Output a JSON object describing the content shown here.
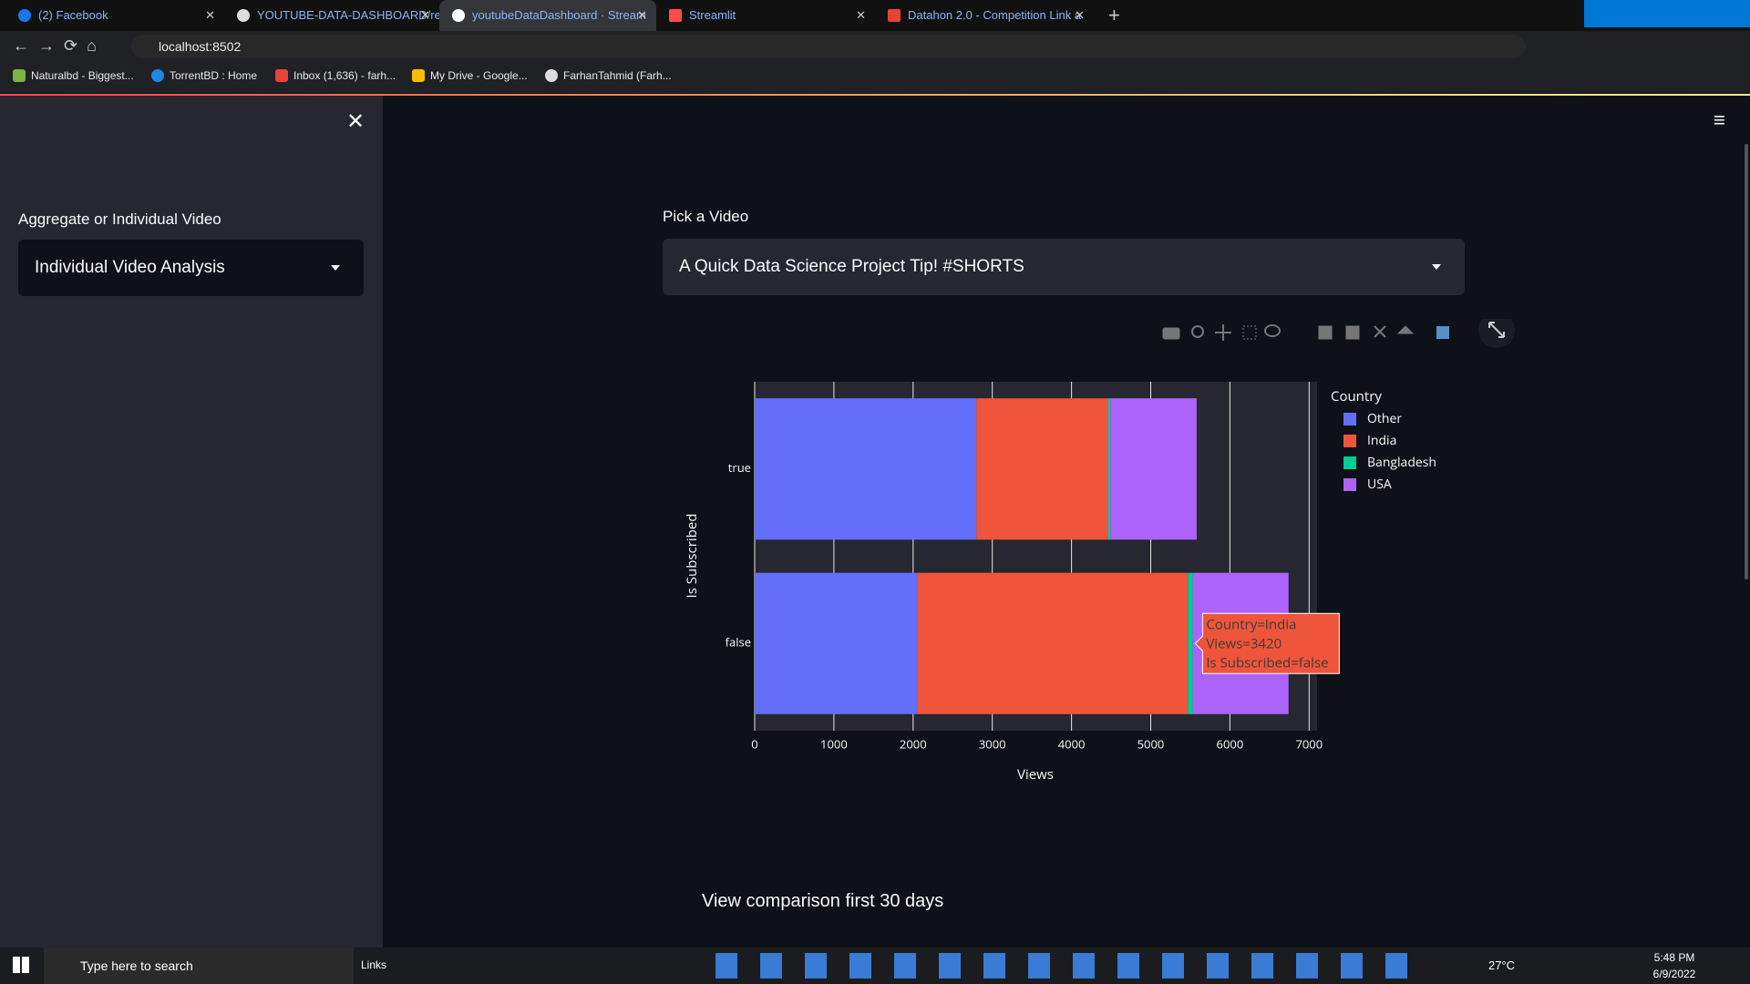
{
  "browser": {
    "tabs": [
      "(2) Facebook",
      "YOUTUBE-DATA-DASHBOARD/re",
      "youtubeDataDashboard · Stream",
      "Streamlit",
      "Datahon 2.0 - Competition Link a"
    ],
    "address": "localhost:8502",
    "bookmarks": [
      "Naturalbd - Biggest...",
      "TorrentBD : Home",
      "Inbox (1,636) - farh...",
      "My Drive - Google...",
      "FarhanTahmid (Farh..."
    ]
  },
  "sidebar": {
    "label": "Aggregate or Individual Video",
    "select": "Individual Video Analysis"
  },
  "main": {
    "label": "Pick a Video",
    "select": "A Quick Data Science Project Tip! #SHORTS",
    "section_title": "View comparison first 30 days"
  },
  "chart_data": {
    "type": "bar",
    "orientation": "horizontal",
    "barmode": "stack",
    "xlabel": "Views",
    "ylabel": "Is Subscribed",
    "legend_title": "Country",
    "categories": [
      "true",
      "false"
    ],
    "series": [
      {
        "name": "Other",
        "color": "#636efa",
        "values": [
          2800,
          2050
        ]
      },
      {
        "name": "India",
        "color": "#ef553b",
        "values": [
          1660,
          3420
        ]
      },
      {
        "name": "Bangladesh",
        "color": "#00cc96",
        "values": [
          30,
          60
        ]
      },
      {
        "name": "USA",
        "color": "#ab63fa",
        "values": [
          1090,
          1210
        ]
      }
    ],
    "xlim": [
      0,
      7100
    ],
    "xticks": [
      0,
      1000,
      2000,
      3000,
      4000,
      5000,
      6000,
      7000
    ],
    "grid": true,
    "hover_label": [
      "Country=India",
      "Views=3420",
      "Is Subscribed=false"
    ]
  },
  "taskbar": {
    "search": "Type here to search",
    "links": "Links",
    "temperature": "27°C",
    "time": "5:48 PM",
    "date": "6/9/2022"
  }
}
